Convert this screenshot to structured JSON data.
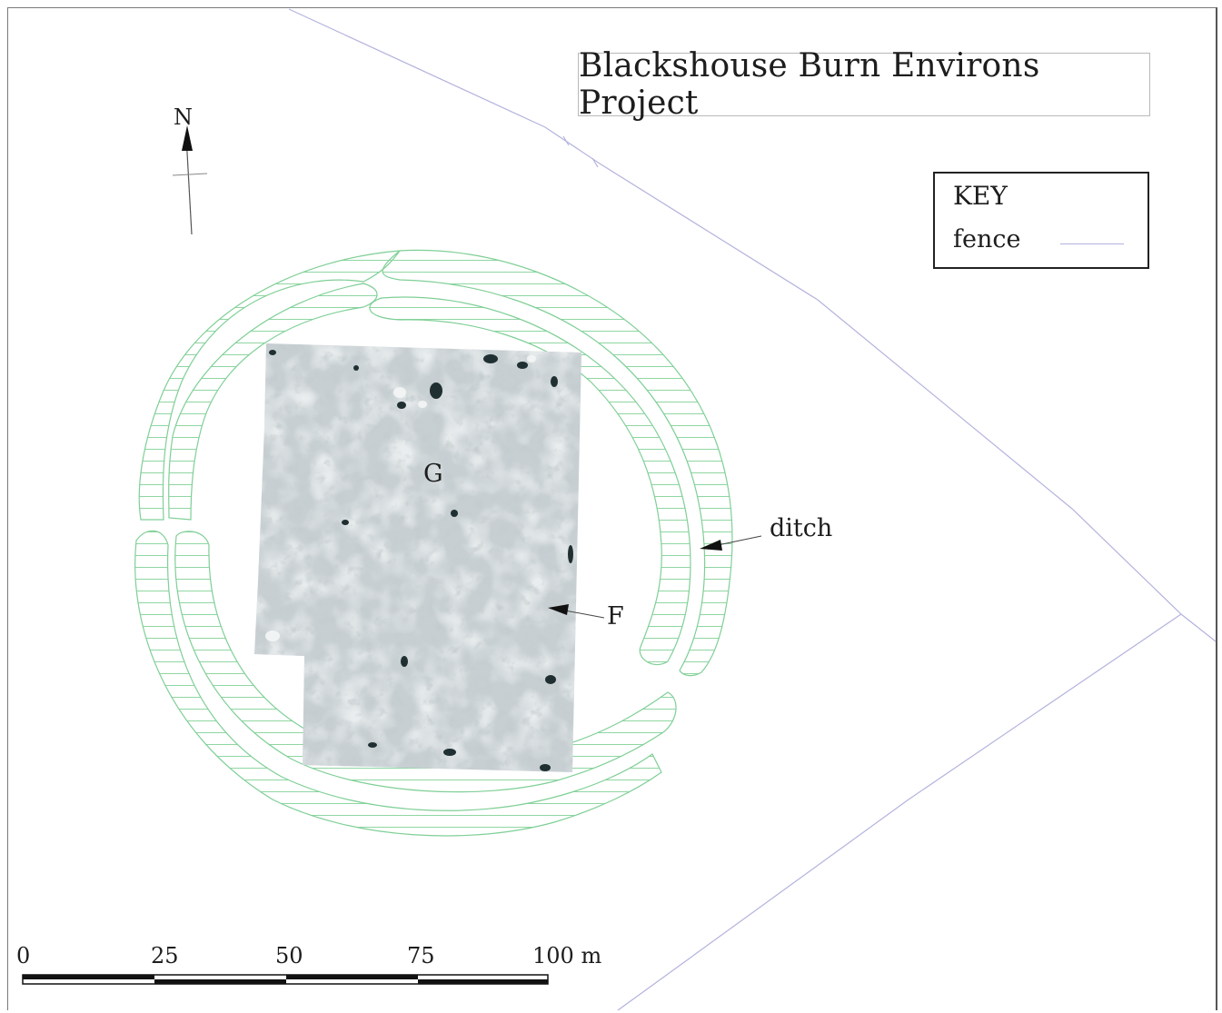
{
  "title": "Blackshouse Burn Environs Project",
  "key": {
    "title": "KEY",
    "items": [
      {
        "label": "fence",
        "color": "#b3b3de"
      }
    ]
  },
  "north_label": "N",
  "labels": {
    "g": "G",
    "f": "F",
    "ditch": "ditch"
  },
  "scale_bar": {
    "ticks": [
      "0",
      "25",
      "50",
      "75",
      "100 m"
    ]
  },
  "colors": {
    "ditch_outline": "#7fcf96",
    "fence": "#b3b3de",
    "survey_dark": "#1f2f32",
    "survey_mid": "#a9b4b8"
  }
}
